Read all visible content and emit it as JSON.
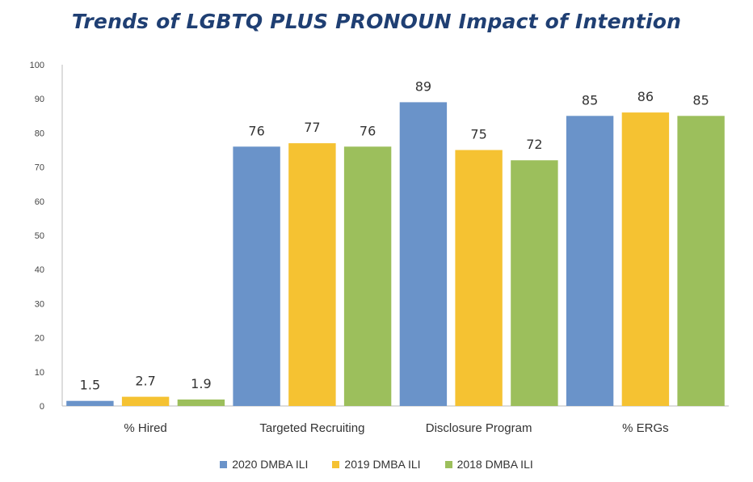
{
  "chart_data": {
    "type": "bar",
    "title": "Trends of LGBTQ PLUS PRONOUN Impact of Intention",
    "categories": [
      "% Hired",
      "Targeted Recruiting",
      "Disclosure Program",
      "% ERGs"
    ],
    "series": [
      {
        "name": "2020 DMBA ILI",
        "values": [
          1.5,
          76,
          89,
          85
        ],
        "color": "#6a93c9"
      },
      {
        "name": "2019 DMBA ILI",
        "values": [
          2.7,
          77,
          75,
          86
        ],
        "color": "#f5c232"
      },
      {
        "name": "2018 DMBA ILI",
        "values": [
          1.9,
          76,
          72,
          85
        ],
        "color": "#9cbf5c"
      }
    ],
    "ylim": [
      0,
      100
    ],
    "yticks": [
      0,
      10,
      20,
      30,
      40,
      50,
      60,
      70,
      80,
      90,
      100
    ],
    "xlabel": "",
    "ylabel": "",
    "grid": false,
    "legend": "bottom"
  }
}
